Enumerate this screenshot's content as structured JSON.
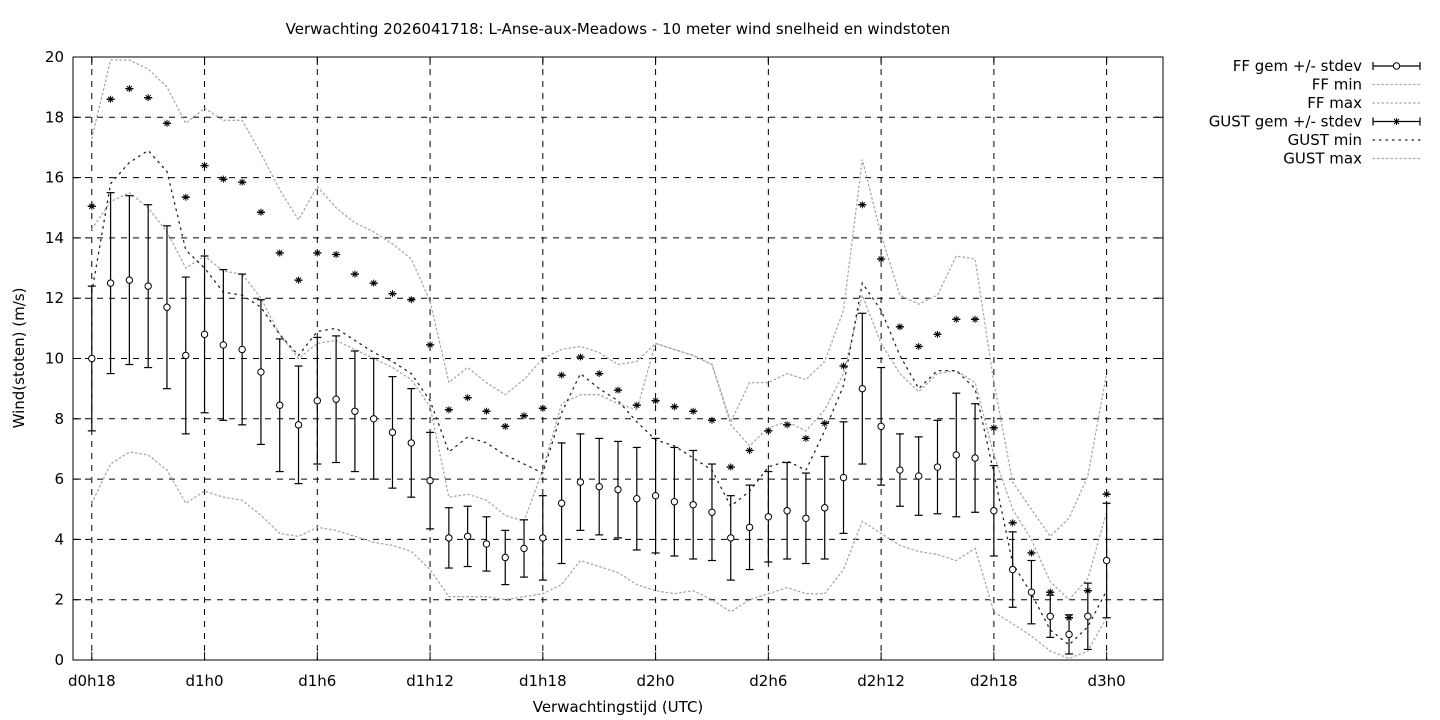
{
  "chart_data": {
    "type": "line",
    "title": "Verwachting 2026041718: L-Anse-aux-Meadows - 10 meter wind snelheid en windstoten",
    "xlabel": "Verwachtingstijd (UTC)",
    "ylabel": "Wind(stoten) (m/s)",
    "ylim": [
      0,
      20
    ],
    "xlim": [
      -1,
      57
    ],
    "x_unit": "hours since first forecast step (d0h18)",
    "yticks": [
      0,
      2,
      4,
      6,
      8,
      10,
      12,
      14,
      16,
      18,
      20
    ],
    "xticks": [
      {
        "x": 0,
        "label": "d0h18"
      },
      {
        "x": 6,
        "label": "d1h0"
      },
      {
        "x": 12,
        "label": "d1h6"
      },
      {
        "x": 18,
        "label": "d1h12"
      },
      {
        "x": 24,
        "label": "d1h18"
      },
      {
        "x": 30,
        "label": "d2h0"
      },
      {
        "x": 36,
        "label": "d2h6"
      },
      {
        "x": 42,
        "label": "d2h12"
      },
      {
        "x": 48,
        "label": "d2h18"
      },
      {
        "x": 54,
        "label": "d3h0"
      }
    ],
    "grid": true,
    "legend_position": "outside-top-right",
    "x": [
      0,
      1,
      2,
      3,
      4,
      5,
      6,
      7,
      8,
      9,
      10,
      11,
      12,
      13,
      14,
      15,
      16,
      17,
      18,
      19,
      20,
      21,
      22,
      23,
      24,
      25,
      26,
      27,
      28,
      29,
      30,
      31,
      32,
      33,
      34,
      35,
      36,
      37,
      38,
      39,
      40,
      41,
      42,
      43,
      44,
      45,
      46,
      47,
      48,
      49,
      50,
      51,
      52,
      53,
      54
    ],
    "series": [
      {
        "name": "FF gem +/- stdev",
        "style": "errorbar-circle",
        "values": [
          10.0,
          12.5,
          12.6,
          12.4,
          11.7,
          10.1,
          10.8,
          10.45,
          10.3,
          9.55,
          8.45,
          7.8,
          8.6,
          8.65,
          8.25,
          8.0,
          7.55,
          7.2,
          5.95,
          4.05,
          4.1,
          3.85,
          3.4,
          3.7,
          4.05,
          5.2,
          5.9,
          5.75,
          5.65,
          5.35,
          5.45,
          5.25,
          5.15,
          4.9,
          4.05,
          4.4,
          4.75,
          4.95,
          4.7,
          5.05,
          6.05,
          9.0,
          7.75,
          6.3,
          6.1,
          6.4,
          6.8,
          6.7,
          4.95,
          3.0,
          2.25,
          1.45,
          0.85,
          1.45,
          3.3
        ],
        "stdev": [
          2.4,
          3.0,
          2.8,
          2.7,
          2.7,
          2.6,
          2.6,
          2.5,
          2.5,
          2.4,
          2.2,
          1.95,
          2.1,
          2.1,
          2.0,
          2.0,
          1.85,
          1.8,
          1.6,
          1.0,
          1.0,
          0.9,
          0.9,
          0.95,
          1.4,
          2.0,
          1.6,
          1.6,
          1.6,
          1.7,
          1.9,
          1.8,
          1.8,
          1.6,
          1.4,
          1.4,
          1.5,
          1.6,
          1.5,
          1.7,
          1.85,
          2.5,
          1.95,
          1.2,
          1.3,
          1.55,
          2.05,
          1.8,
          1.5,
          1.25,
          1.05,
          0.7,
          0.65,
          1.1,
          1.9
        ]
      },
      {
        "name": "FF min",
        "style": "dotted",
        "values": [
          5.2,
          6.5,
          6.9,
          6.8,
          6.3,
          5.2,
          5.6,
          5.4,
          5.3,
          4.8,
          4.2,
          4.1,
          4.4,
          4.3,
          4.1,
          3.9,
          3.8,
          3.6,
          3.0,
          2.1,
          2.1,
          2.1,
          2.0,
          2.1,
          2.2,
          2.5,
          3.3,
          3.1,
          2.9,
          2.5,
          2.3,
          2.2,
          2.3,
          2.0,
          1.6,
          2.0,
          2.2,
          2.4,
          2.2,
          2.2,
          3.0,
          4.6,
          4.2,
          3.8,
          3.6,
          3.5,
          3.3,
          3.7,
          1.6,
          1.2,
          0.8,
          0.3,
          0.05,
          0.3,
          1.4
        ]
      },
      {
        "name": "FF max",
        "style": "dotted",
        "values": [
          14.3,
          15.2,
          15.5,
          15.0,
          14.2,
          13.0,
          13.4,
          12.9,
          12.8,
          12.0,
          10.8,
          10.0,
          10.5,
          10.6,
          10.3,
          10.0,
          9.7,
          9.3,
          8.4,
          5.4,
          5.5,
          5.3,
          4.8,
          4.6,
          6.3,
          8.5,
          8.8,
          8.8,
          8.5,
          8.3,
          10.5,
          10.3,
          10.1,
          9.8,
          7.8,
          7.1,
          7.7,
          7.9,
          7.6,
          8.3,
          9.5,
          12.1,
          10.5,
          9.5,
          8.9,
          9.5,
          9.6,
          9.2,
          6.8,
          5.0,
          4.0,
          2.6,
          2.0,
          2.7,
          4.9
        ]
      },
      {
        "name": "GUST gem +/- stdev",
        "style": "errorbar-star",
        "values": [
          15.05,
          18.6,
          18.95,
          18.65,
          17.8,
          15.35,
          16.4,
          15.95,
          15.85,
          14.85,
          13.5,
          12.6,
          13.5,
          13.45,
          12.8,
          12.5,
          12.15,
          11.95,
          10.45,
          8.3,
          8.7,
          8.25,
          7.75,
          8.1,
          8.35,
          9.45,
          10.05,
          9.5,
          8.95,
          8.45,
          8.6,
          8.4,
          8.25,
          7.95,
          6.4,
          6.95,
          7.6,
          7.8,
          7.35,
          7.85,
          9.75,
          15.1,
          13.3,
          11.05,
          10.4,
          10.8,
          11.3,
          11.3,
          7.7,
          4.55,
          3.55,
          2.25,
          1.4,
          2.3,
          5.5
        ]
      },
      {
        "name": "GUST min",
        "style": "dotted-coarse",
        "values": [
          12.2,
          15.8,
          16.5,
          16.9,
          16.2,
          13.6,
          13.0,
          12.2,
          12.1,
          11.7,
          10.8,
          10.1,
          10.9,
          11.0,
          10.6,
          10.2,
          9.9,
          9.5,
          8.6,
          6.9,
          7.4,
          7.2,
          6.8,
          6.5,
          6.2,
          8.2,
          9.5,
          9.0,
          8.6,
          7.9,
          7.3,
          7.1,
          6.7,
          6.3,
          5.1,
          5.6,
          6.4,
          6.6,
          6.3,
          7.6,
          9.1,
          12.5,
          11.6,
          10.1,
          9.0,
          9.6,
          9.6,
          9.0,
          6.2,
          3.2,
          2.2,
          1.0,
          0.5,
          1.1,
          2.3
        ]
      },
      {
        "name": "GUST max",
        "style": "dotted",
        "values": [
          17.3,
          19.9,
          19.9,
          19.6,
          19.0,
          17.8,
          18.3,
          17.9,
          17.9,
          16.8,
          15.6,
          14.6,
          15.7,
          15.0,
          14.5,
          14.2,
          13.8,
          13.3,
          11.9,
          9.2,
          9.7,
          9.2,
          8.8,
          9.3,
          10.0,
          10.3,
          10.4,
          10.2,
          9.8,
          9.9,
          10.5,
          10.3,
          10.1,
          9.8,
          7.9,
          9.2,
          9.2,
          9.5,
          9.3,
          9.9,
          11.6,
          16.6,
          14.1,
          12.1,
          11.8,
          12.1,
          13.4,
          13.3,
          9.2,
          5.9,
          5.0,
          4.1,
          4.7,
          6.1,
          9.5
        ]
      }
    ]
  }
}
